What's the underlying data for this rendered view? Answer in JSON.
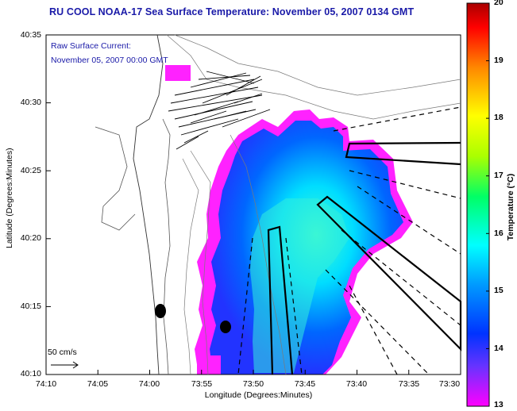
{
  "title": "RU COOL  NOAA-17  Sea Surface Temperature:  November 05, 2007 0134 GMT",
  "legend": {
    "line1": "Raw Surface Current:",
    "line2": "November 05, 2007 00:00 GMT"
  },
  "axes": {
    "y_ticks": [
      "40:35",
      "40:30",
      "40:25",
      "40:20",
      "40:15",
      "40:10"
    ],
    "x_ticks": [
      "74:10",
      "74:05",
      "74:00",
      "73:55",
      "73:50",
      "73:45",
      "73:40",
      "73:35",
      "73:30"
    ],
    "ylabel": "Latitude (Degrees:Minutes)",
    "xlabel": "Longitude (Degrees:Minutes)"
  },
  "colorbar": {
    "ticks": [
      "20",
      "19",
      "18",
      "17",
      "16",
      "15",
      "14",
      "13"
    ],
    "label": "Temperature (°C)"
  },
  "scale": {
    "label": "50 cm/s"
  },
  "colors": {
    "title": "#1a1aa8",
    "sst_low": "#ff00ff",
    "sst_mid": "#0033ff",
    "sst_high": "#00ffff"
  }
}
